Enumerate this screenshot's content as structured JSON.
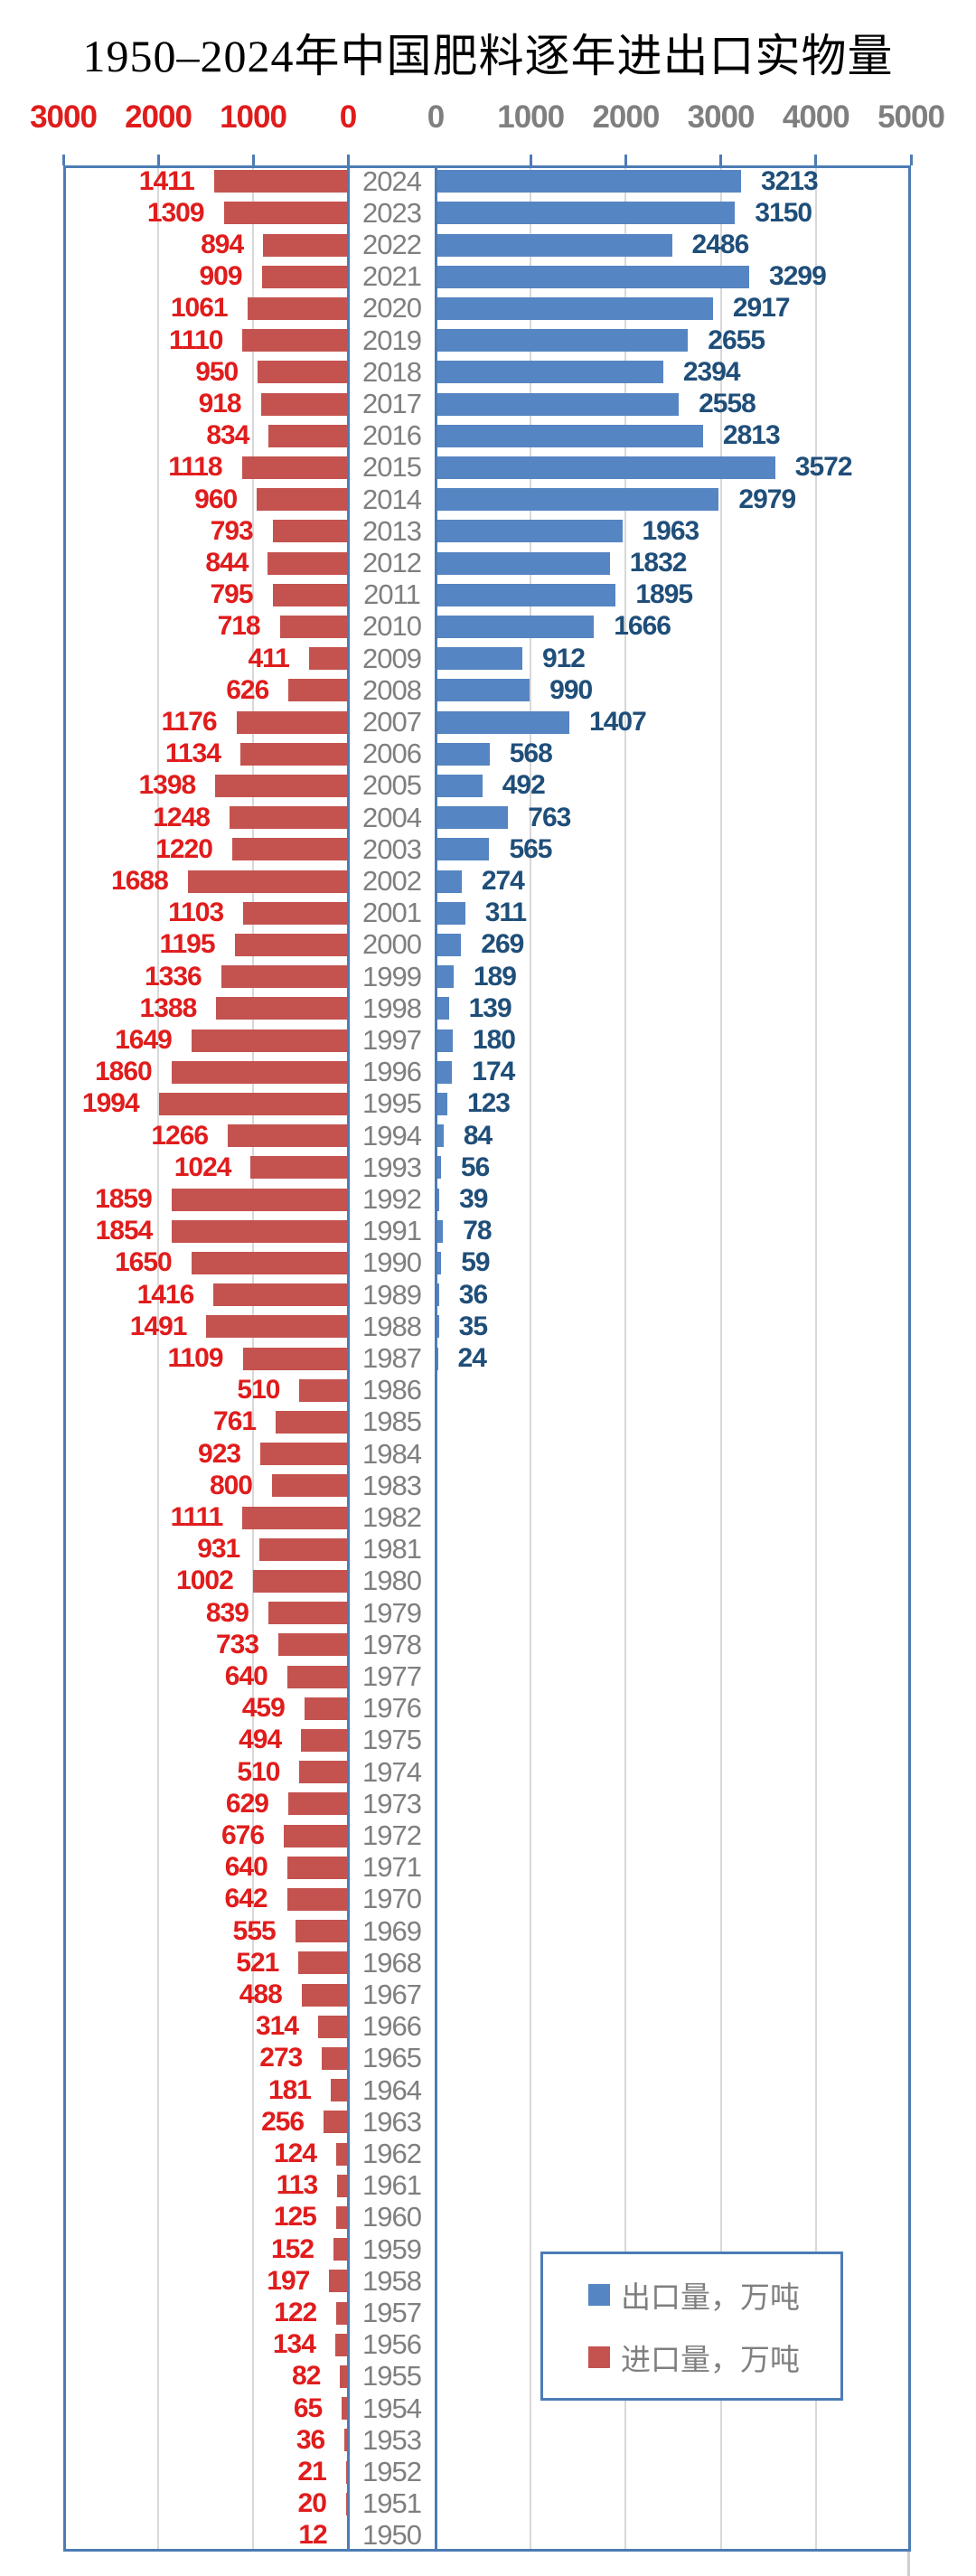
{
  "title": "1950–2024年中国肥料逐年进出口实物量",
  "axes": {
    "left_ticks": [
      "3000",
      "2000",
      "1000",
      "0"
    ],
    "right_ticks": [
      "0",
      "1000",
      "2000",
      "3000",
      "4000",
      "5000"
    ]
  },
  "legend": {
    "export_label": "出口量，万吨",
    "import_label": "进口量，万吨"
  },
  "colors": {
    "import_bar": "#C4534F",
    "export_bar": "#5585C2",
    "import_text": "#E01C1C",
    "export_text": "#1F4E79",
    "muted_text": "#7F7F7F",
    "gridline": "#D8D8D8",
    "frame": "#4C7CB5"
  },
  "chart_data": {
    "type": "bar",
    "orientation": "horizontal-diverging",
    "title": "1950–2024年中国肥料逐年进出口实物量",
    "unit": "万吨",
    "grid": true,
    "legend_position": "inside-lower-right",
    "left_axis": {
      "label": "进口量",
      "min": 0,
      "max": 3000,
      "tick_step": 1000,
      "direction": "right-to-left"
    },
    "right_axis": {
      "label": "出口量",
      "min": 0,
      "max": 5000,
      "tick_step": 1000,
      "direction": "left-to-right"
    },
    "categories": [
      2024,
      2023,
      2022,
      2021,
      2020,
      2019,
      2018,
      2017,
      2016,
      2015,
      2014,
      2013,
      2012,
      2011,
      2010,
      2009,
      2008,
      2007,
      2006,
      2005,
      2004,
      2003,
      2002,
      2001,
      2000,
      1999,
      1998,
      1997,
      1996,
      1995,
      1994,
      1993,
      1992,
      1991,
      1990,
      1989,
      1988,
      1987,
      1986,
      1985,
      1984,
      1983,
      1982,
      1981,
      1980,
      1979,
      1978,
      1977,
      1976,
      1975,
      1974,
      1973,
      1972,
      1971,
      1970,
      1969,
      1968,
      1967,
      1966,
      1965,
      1964,
      1963,
      1962,
      1961,
      1960,
      1959,
      1958,
      1957,
      1956,
      1955,
      1954,
      1953,
      1952,
      1951,
      1950
    ],
    "series": [
      {
        "name": "出口量，万吨",
        "color": "#5585C2",
        "axis": "right",
        "values": [
          3213,
          3150,
          2486,
          3299,
          2917,
          2655,
          2394,
          2558,
          2813,
          3572,
          2979,
          1963,
          1832,
          1895,
          1666,
          912,
          990,
          1407,
          568,
          492,
          763,
          565,
          274,
          311,
          269,
          189,
          139,
          180,
          174,
          123,
          84,
          56,
          39,
          78,
          59,
          36,
          35,
          24,
          null,
          null,
          null,
          null,
          null,
          null,
          null,
          null,
          null,
          null,
          null,
          null,
          null,
          null,
          null,
          null,
          null,
          null,
          null,
          null,
          null,
          null,
          null,
          null,
          null,
          null,
          null,
          null,
          null,
          null,
          null,
          null,
          null,
          null,
          null,
          null,
          null
        ]
      },
      {
        "name": "进口量，万吨",
        "color": "#C4534F",
        "axis": "left",
        "values": [
          1411,
          1309,
          894,
          909,
          1061,
          1110,
          950,
          918,
          834,
          1118,
          960,
          793,
          844,
          795,
          718,
          411,
          626,
          1176,
          1134,
          1398,
          1248,
          1220,
          1688,
          1103,
          1195,
          1336,
          1388,
          1649,
          1860,
          1994,
          1266,
          1024,
          1859,
          1854,
          1650,
          1416,
          1491,
          1109,
          510,
          761,
          923,
          800,
          1111,
          931,
          1002,
          839,
          733,
          640,
          459,
          494,
          510,
          629,
          676,
          640,
          642,
          555,
          521,
          488,
          314,
          273,
          181,
          256,
          124,
          113,
          125,
          152,
          197,
          122,
          134,
          82,
          65,
          36,
          21,
          20,
          12
        ]
      }
    ]
  }
}
